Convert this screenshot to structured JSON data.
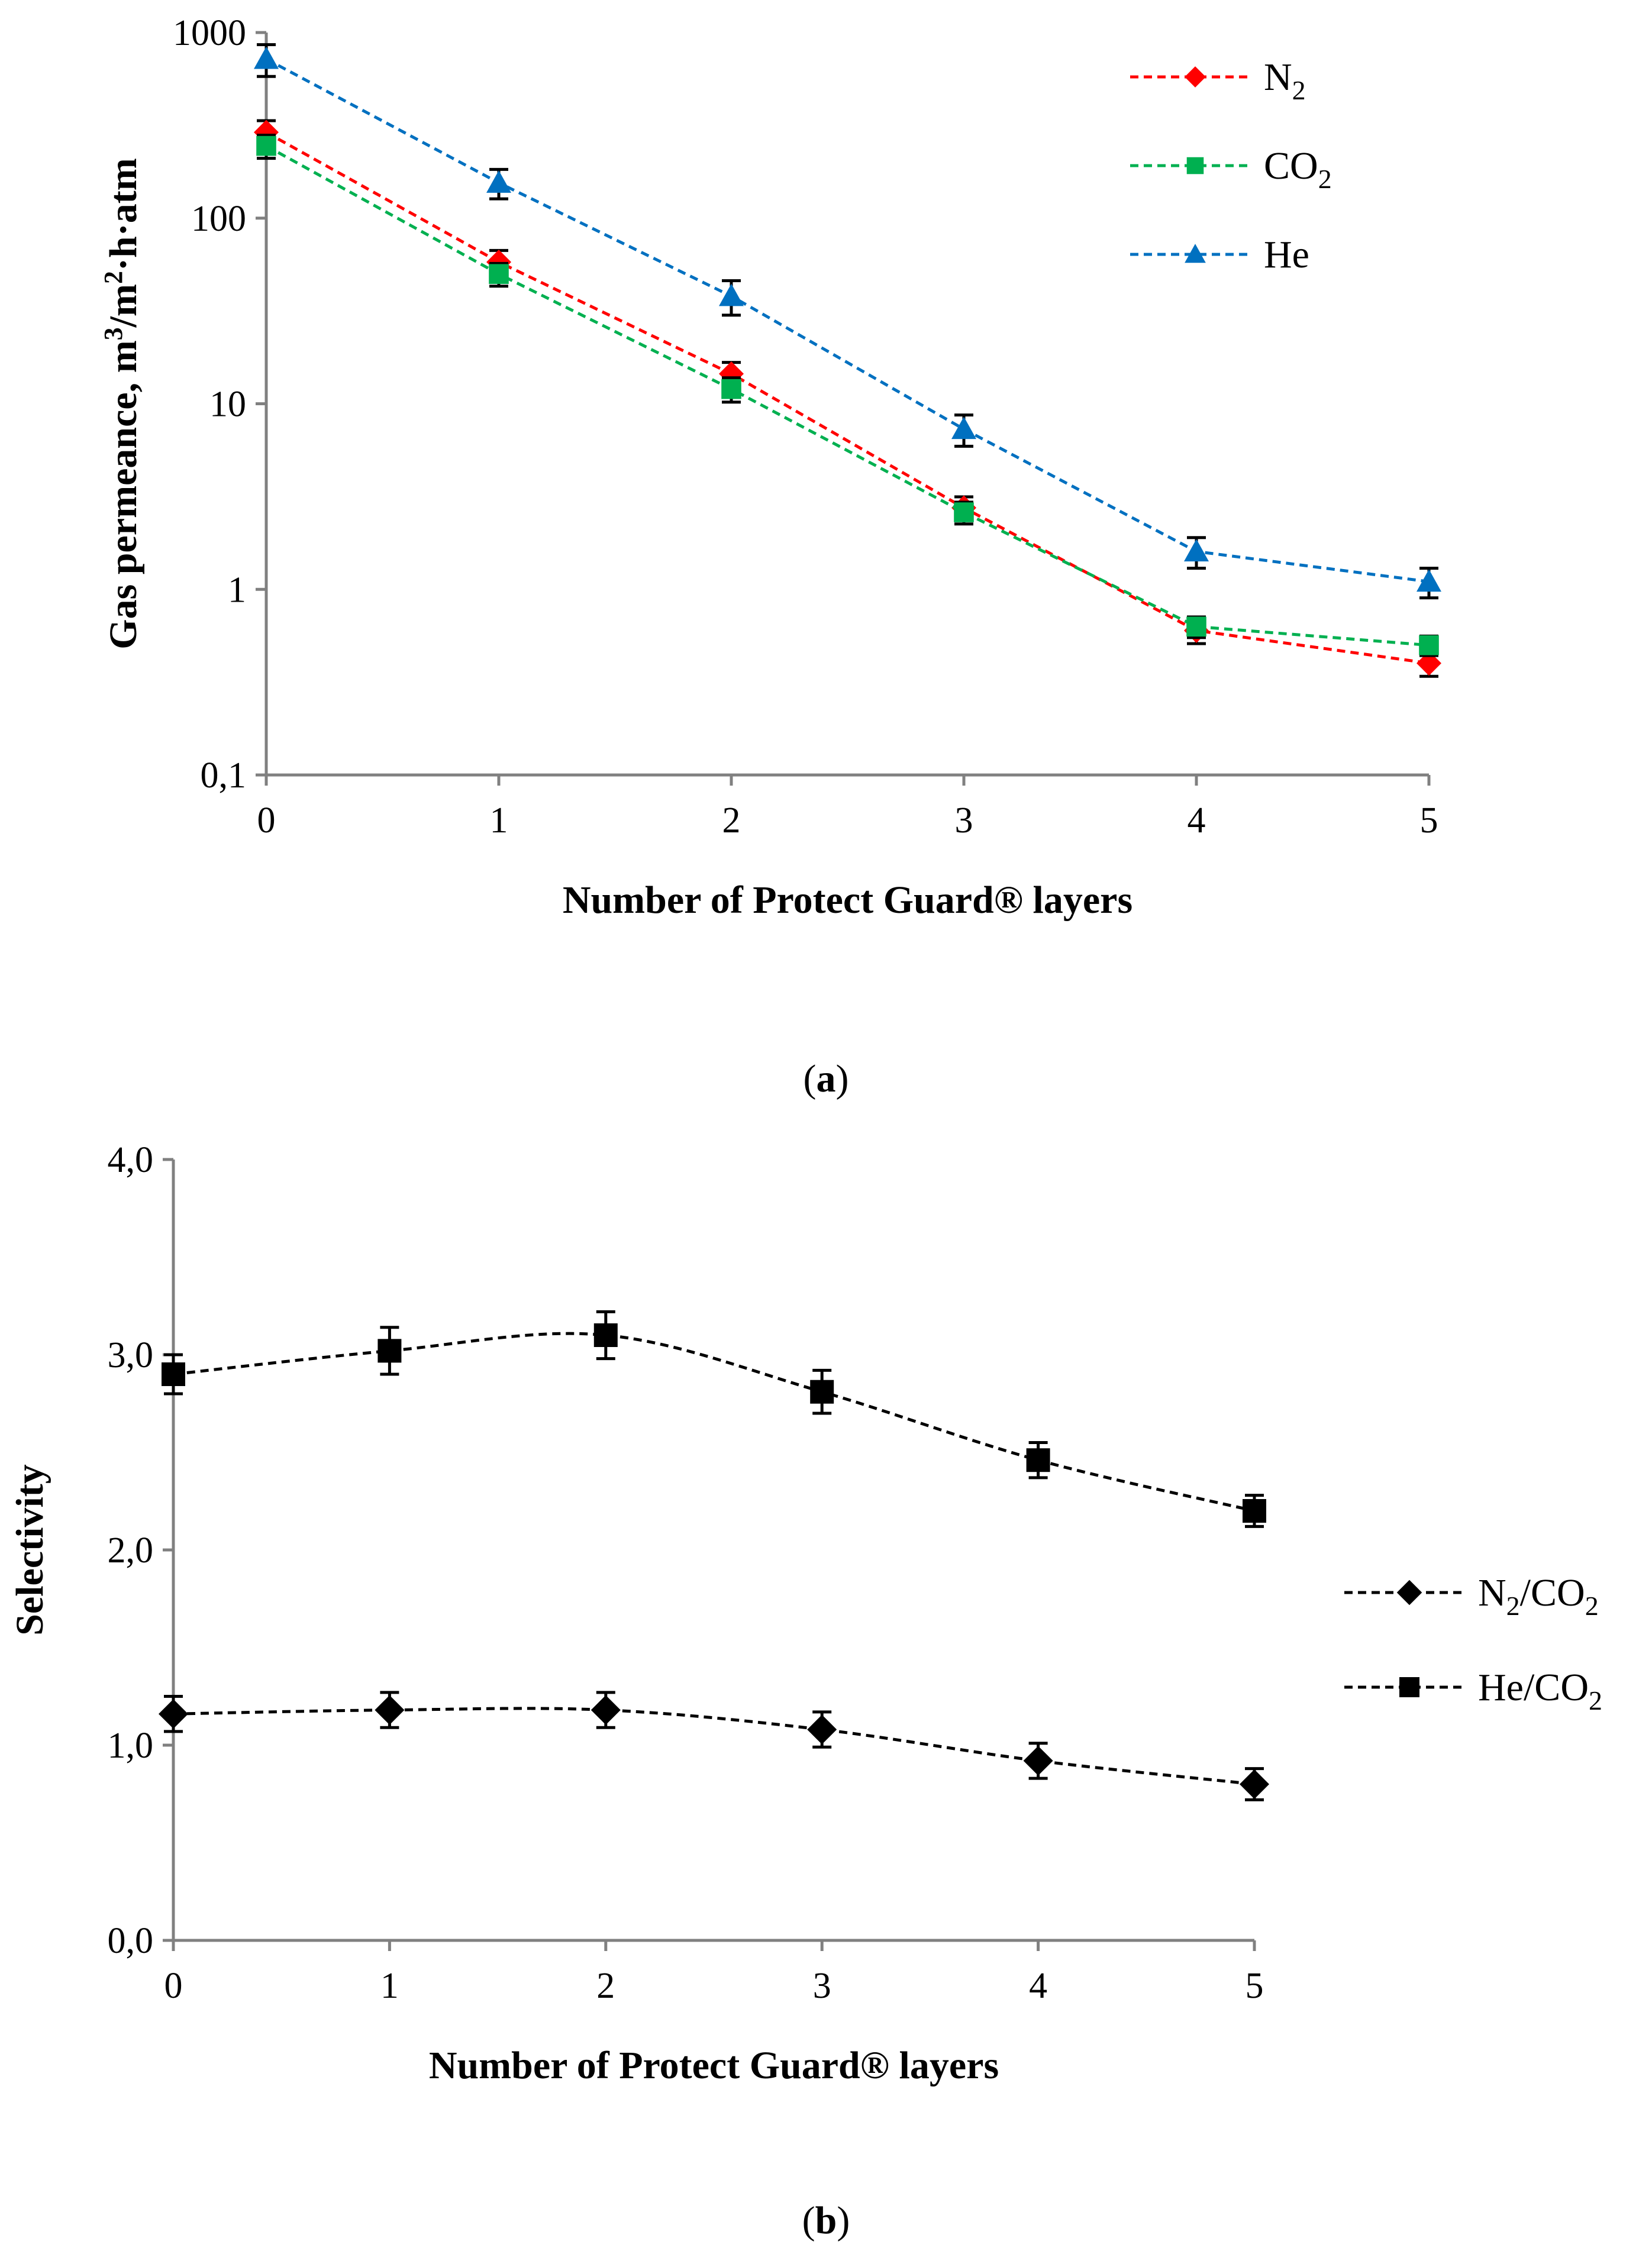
{
  "panels": [
    {
      "caption": {
        "open": "(",
        "letter": "a",
        "close": ")"
      },
      "chart_data": {
        "type": "line",
        "title": "",
        "xlabel": "Number of Protect Guard® layers",
        "ylabel": {
          "main": "Gas permeance, m",
          "sup1": "3",
          "mid": "/m",
          "sup2": "2",
          "end": "·h·atm"
        },
        "y_scale": "log",
        "ylim": [
          0.1,
          1000
        ],
        "xlim": [
          0,
          5
        ],
        "x": [
          0,
          1,
          2,
          3,
          4,
          5
        ],
        "x_tick_labels": [
          "0",
          "1",
          "2",
          "3",
          "4",
          "5"
        ],
        "y_ticks": [
          0.1,
          1,
          10,
          100,
          1000
        ],
        "y_tick_labels": [
          "0,1",
          "1",
          "10",
          "100",
          "1000"
        ],
        "grid": false,
        "legend_position": "top-right",
        "series": [
          {
            "name": "N",
            "sub": "2",
            "color": "#ff0000",
            "marker": "diamond",
            "line": "dashed",
            "values": [
              290,
              58,
              14.5,
              2.75,
              0.6,
              0.4
            ],
            "errors": [
              45,
              9,
              2.2,
              0.4,
              0.09,
              0.06
            ]
          },
          {
            "name": "CO",
            "sub": "2",
            "color": "#00b050",
            "marker": "square",
            "line": "dashed",
            "values": [
              245,
              50,
              12,
              2.6,
              0.63,
              0.5
            ],
            "errors": [
              35,
              7,
              1.8,
              0.35,
              0.08,
              0.06
            ]
          },
          {
            "name": "He",
            "sub": "",
            "color": "#0070c0",
            "marker": "triangle",
            "line": "dashed",
            "values": [
              720,
              155,
              38,
              7.3,
              1.6,
              1.1
            ],
            "errors": [
              140,
              28,
              8,
              1.4,
              0.3,
              0.2
            ]
          }
        ]
      }
    },
    {
      "caption": {
        "open": "(",
        "letter": "b",
        "close": ")"
      },
      "chart_data": {
        "type": "line",
        "title": "",
        "xlabel": "Number of Protect Guard® layers",
        "ylabel": {
          "main": "Selectivity"
        },
        "y_scale": "linear",
        "ylim": [
          0,
          4
        ],
        "xlim": [
          0,
          5
        ],
        "x": [
          0,
          1,
          2,
          3,
          4,
          5
        ],
        "x_tick_labels": [
          "0",
          "1",
          "2",
          "3",
          "4",
          "5"
        ],
        "y_ticks": [
          0,
          1,
          2,
          3,
          4
        ],
        "y_tick_labels": [
          "0,0",
          "1,0",
          "2,0",
          "3,0",
          "4,0"
        ],
        "grid": false,
        "legend_position": "right",
        "series": [
          {
            "name": "N",
            "sub": "2",
            "suffix": "/CO",
            "sub2": "2",
            "color": "#000000",
            "marker": "diamond",
            "line": "dashed",
            "values": [
              1.16,
              1.18,
              1.18,
              1.08,
              0.92,
              0.8
            ],
            "errors": [
              0.09,
              0.09,
              0.09,
              0.09,
              0.09,
              0.08
            ]
          },
          {
            "name": "He",
            "sub": "",
            "suffix": "/CO",
            "sub2": "2",
            "color": "#000000",
            "marker": "square",
            "line": "dashed",
            "values": [
              2.9,
              3.02,
              3.1,
              2.81,
              2.46,
              2.2
            ],
            "errors": [
              0.1,
              0.12,
              0.12,
              0.11,
              0.09,
              0.08
            ]
          }
        ]
      }
    }
  ]
}
